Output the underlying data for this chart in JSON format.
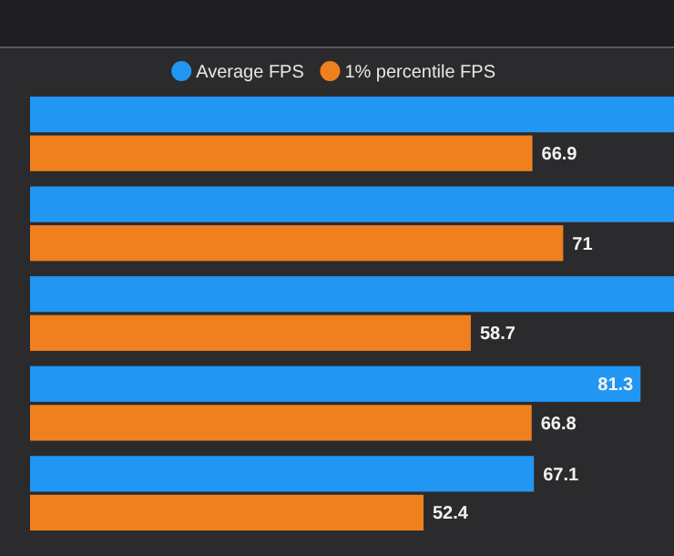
{
  "chart_data": {
    "type": "bar",
    "orientation": "horizontal",
    "categories": [
      null,
      null,
      null,
      null,
      null
    ],
    "series": [
      {
        "name": "Average FPS",
        "color": "#2196f3",
        "values": [
          86,
          86,
          86,
          81.3,
          67.1
        ],
        "value_labels": [
          null,
          null,
          null,
          "81.3",
          "67.1"
        ]
      },
      {
        "name": "1% percentile FPS",
        "color": "#f0801e",
        "values": [
          66.9,
          71,
          58.7,
          66.8,
          52.4
        ],
        "value_labels": [
          "66.9",
          "71",
          "58.7",
          "66.8",
          "52.4"
        ]
      }
    ],
    "xlim": [
      0,
      86
    ],
    "legend": "top"
  }
}
